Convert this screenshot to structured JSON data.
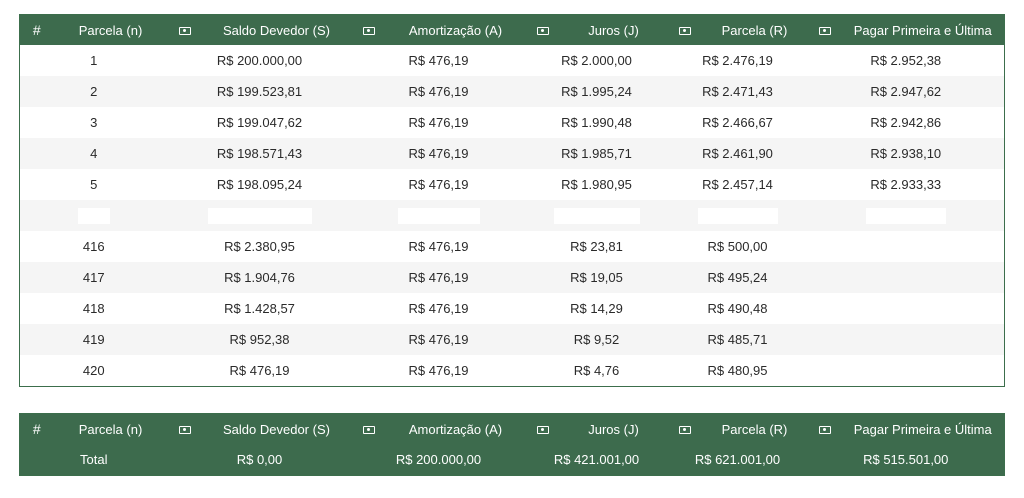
{
  "headers": {
    "hash": "#",
    "n": "Parcela (n)",
    "saldo": "Saldo Devedor (S)",
    "amort": "Amortização (A)",
    "juros": "Juros (J)",
    "parcela": "Parcela (R)",
    "pagar": "Pagar Primeira e Última"
  },
  "rows_top": [
    {
      "n": "1",
      "saldo": "R$ 200.000,00",
      "amort": "R$ 476,19",
      "juros": "R$ 2.000,00",
      "parcela": "R$ 2.476,19",
      "pagar": "R$ 2.952,38"
    },
    {
      "n": "2",
      "saldo": "R$ 199.523,81",
      "amort": "R$ 476,19",
      "juros": "R$ 1.995,24",
      "parcela": "R$ 2.471,43",
      "pagar": "R$ 2.947,62"
    },
    {
      "n": "3",
      "saldo": "R$ 199.047,62",
      "amort": "R$ 476,19",
      "juros": "R$ 1.990,48",
      "parcela": "R$ 2.466,67",
      "pagar": "R$ 2.942,86"
    },
    {
      "n": "4",
      "saldo": "R$ 198.571,43",
      "amort": "R$ 476,19",
      "juros": "R$ 1.985,71",
      "parcela": "R$ 2.461,90",
      "pagar": "R$ 2.938,10"
    },
    {
      "n": "5",
      "saldo": "R$ 198.095,24",
      "amort": "R$ 476,19",
      "juros": "R$ 1.980,95",
      "parcela": "R$ 2.457,14",
      "pagar": "R$ 2.933,33"
    }
  ],
  "rows_bottom": [
    {
      "n": "416",
      "saldo": "R$ 2.380,95",
      "amort": "R$ 476,19",
      "juros": "R$ 23,81",
      "parcela": "R$ 500,00",
      "pagar": ""
    },
    {
      "n": "417",
      "saldo": "R$ 1.904,76",
      "amort": "R$ 476,19",
      "juros": "R$ 19,05",
      "parcela": "R$ 495,24",
      "pagar": ""
    },
    {
      "n": "418",
      "saldo": "R$ 1.428,57",
      "amort": "R$ 476,19",
      "juros": "R$ 14,29",
      "parcela": "R$ 490,48",
      "pagar": ""
    },
    {
      "n": "419",
      "saldo": "R$ 952,38",
      "amort": "R$ 476,19",
      "juros": "R$ 9,52",
      "parcela": "R$ 485,71",
      "pagar": ""
    },
    {
      "n": "420",
      "saldo": "R$ 476,19",
      "amort": "R$ 476,19",
      "juros": "R$ 4,76",
      "parcela": "R$ 480,95",
      "pagar": ""
    }
  ],
  "totals": {
    "label": "Total",
    "saldo": "R$ 0,00",
    "amort": "R$ 200.000,00",
    "juros": "R$ 421.001,00",
    "parcela": "R$ 621.001,00",
    "pagar": "R$ 515.501,00"
  },
  "icons": {
    "money": "money-icon"
  },
  "colors": {
    "header_bg": "#3d6b4d",
    "header_text": "#ffffff",
    "stripe": "#f5f5f5"
  }
}
